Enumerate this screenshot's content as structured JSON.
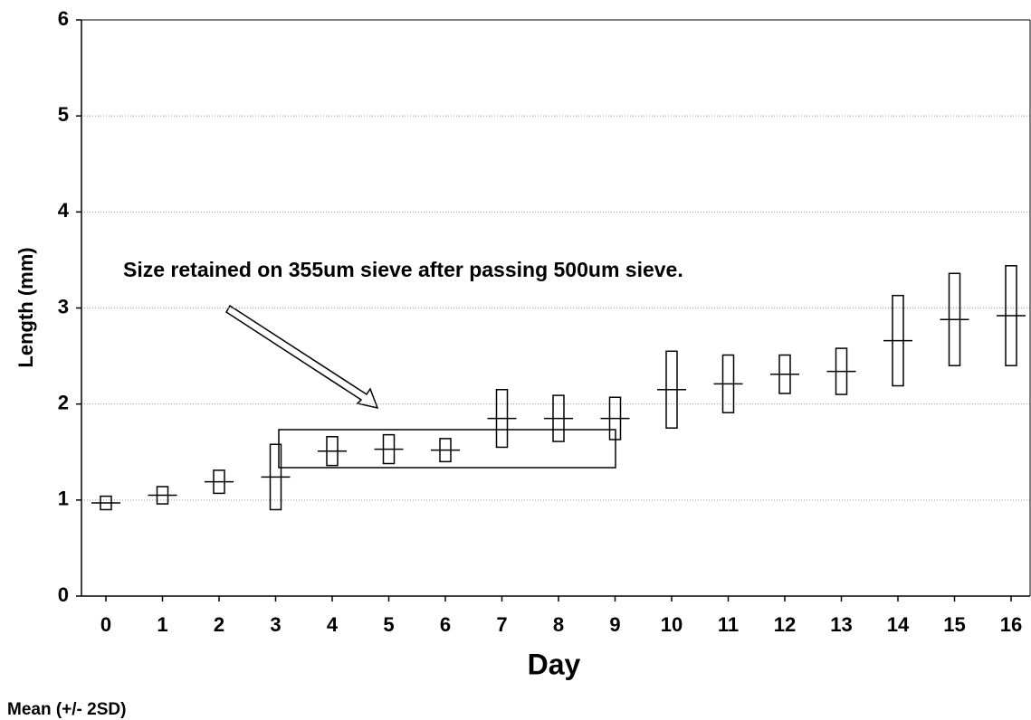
{
  "chart_data": {
    "type": "errorbox",
    "x_label": "Day",
    "y_label": "Length (mm)",
    "annotation": "Size retained on 355um sieve after passing 500um sieve.",
    "footnote": "Mean (+/- 2SD)",
    "categories": [
      "0",
      "1",
      "2",
      "3",
      "4",
      "5",
      "6",
      "7",
      "8",
      "9",
      "10",
      "11",
      "12",
      "13",
      "14",
      "15",
      "16"
    ],
    "series": [
      {
        "name": "Mean",
        "color": "#000000",
        "values": [
          0.97,
          1.05,
          1.19,
          1.24,
          1.51,
          1.53,
          1.52,
          1.85,
          1.85,
          1.85,
          2.15,
          2.21,
          2.31,
          2.34,
          2.66,
          2.88,
          2.92
        ],
        "errors": [
          0.07,
          0.09,
          0.12,
          0.34,
          0.15,
          0.15,
          0.12,
          0.3,
          0.24,
          0.22,
          0.4,
          0.3,
          0.2,
          0.24,
          0.47,
          0.48,
          0.52
        ]
      }
    ],
    "ylim": [
      0,
      6
    ],
    "yticks": [
      0,
      1,
      2,
      3,
      4,
      5,
      6
    ],
    "grid": true
  }
}
